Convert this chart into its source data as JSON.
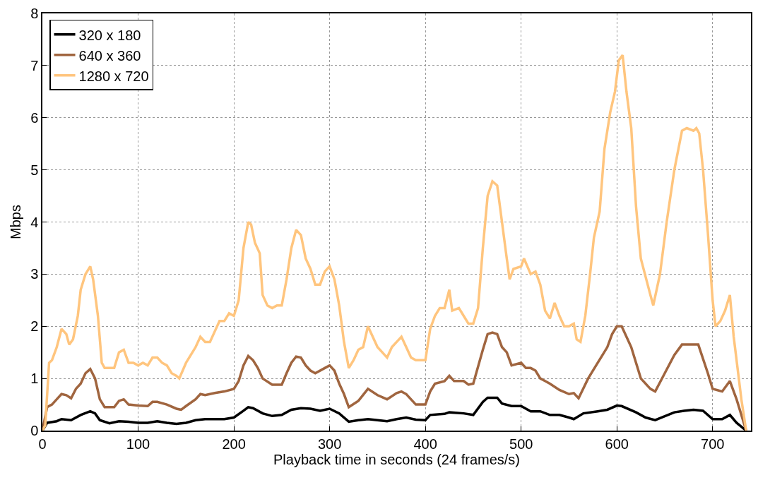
{
  "chart_data": {
    "type": "line",
    "xlabel": "Playback time in seconds (24 frames/s)",
    "ylabel": "Mbps",
    "xlim": [
      0,
      740
    ],
    "xticks": [
      0,
      100,
      200,
      300,
      400,
      500,
      600,
      700
    ],
    "ylim": [
      0,
      8
    ],
    "yticks": [
      0,
      1,
      2,
      3,
      4,
      5,
      6,
      7,
      8
    ],
    "grid": true,
    "legend": "top left",
    "marker": "none",
    "line_style": "solid",
    "series": [
      {
        "name": "320 x 180",
        "color": "#000000",
        "x": [
          0,
          5,
          15,
          20,
          30,
          40,
          50,
          55,
          60,
          70,
          80,
          90,
          100,
          110,
          120,
          130,
          140,
          150,
          160,
          170,
          180,
          190,
          200,
          210,
          215,
          220,
          230,
          240,
          250,
          260,
          270,
          280,
          290,
          300,
          310,
          320,
          330,
          340,
          350,
          360,
          370,
          380,
          390,
          400,
          405,
          420,
          425,
          440,
          450,
          460,
          465,
          475,
          480,
          490,
          500,
          510,
          520,
          530,
          540,
          550,
          555,
          565,
          580,
          590,
          600,
          605,
          620,
          630,
          640,
          660,
          670,
          680,
          690,
          700,
          710,
          718,
          725,
          735
        ],
        "values": [
          0,
          0.15,
          0.18,
          0.22,
          0.2,
          0.3,
          0.37,
          0.33,
          0.2,
          0.14,
          0.18,
          0.17,
          0.15,
          0.15,
          0.18,
          0.15,
          0.13,
          0.15,
          0.2,
          0.22,
          0.22,
          0.22,
          0.25,
          0.38,
          0.45,
          0.43,
          0.33,
          0.28,
          0.3,
          0.4,
          0.43,
          0.42,
          0.38,
          0.42,
          0.33,
          0.17,
          0.2,
          0.22,
          0.2,
          0.18,
          0.22,
          0.25,
          0.21,
          0.2,
          0.3,
          0.32,
          0.35,
          0.33,
          0.3,
          0.55,
          0.63,
          0.63,
          0.52,
          0.47,
          0.47,
          0.37,
          0.37,
          0.3,
          0.3,
          0.25,
          0.22,
          0.33,
          0.37,
          0.4,
          0.48,
          0.47,
          0.35,
          0.25,
          0.2,
          0.35,
          0.38,
          0.4,
          0.38,
          0.22,
          0.22,
          0.3,
          0.15,
          0
        ]
      },
      {
        "name": "640 x 360",
        "color": "#a0653f",
        "x": [
          0,
          5,
          10,
          15,
          20,
          25,
          30,
          35,
          40,
          45,
          50,
          55,
          60,
          65,
          70,
          75,
          80,
          85,
          90,
          100,
          110,
          115,
          120,
          130,
          140,
          145,
          150,
          160,
          165,
          170,
          180,
          190,
          200,
          205,
          210,
          215,
          220,
          225,
          230,
          240,
          250,
          255,
          260,
          265,
          270,
          275,
          280,
          285,
          295,
          300,
          305,
          310,
          315,
          320,
          330,
          340,
          350,
          360,
          370,
          375,
          380,
          390,
          400,
          405,
          410,
          420,
          425,
          430,
          440,
          445,
          450,
          460,
          465,
          470,
          475,
          480,
          485,
          490,
          500,
          505,
          510,
          515,
          520,
          525,
          530,
          540,
          550,
          555,
          560,
          570,
          580,
          590,
          595,
          600,
          605,
          615,
          625,
          635,
          640,
          650,
          660,
          668,
          680,
          685,
          695,
          700,
          710,
          718,
          725,
          735
        ],
        "values": [
          0,
          0.45,
          0.5,
          0.6,
          0.7,
          0.68,
          0.62,
          0.8,
          0.9,
          1.1,
          1.18,
          1.0,
          0.6,
          0.45,
          0.45,
          0.45,
          0.57,
          0.6,
          0.5,
          0.48,
          0.47,
          0.55,
          0.55,
          0.5,
          0.42,
          0.4,
          0.47,
          0.6,
          0.7,
          0.68,
          0.72,
          0.75,
          0.8,
          0.95,
          1.25,
          1.43,
          1.35,
          1.2,
          1.0,
          0.88,
          0.88,
          1.1,
          1.3,
          1.42,
          1.4,
          1.25,
          1.15,
          1.1,
          1.2,
          1.25,
          1.15,
          0.9,
          0.7,
          0.45,
          0.57,
          0.8,
          0.68,
          0.6,
          0.72,
          0.75,
          0.7,
          0.5,
          0.5,
          0.75,
          0.9,
          0.95,
          1.05,
          0.95,
          0.95,
          0.88,
          0.9,
          1.55,
          1.85,
          1.88,
          1.85,
          1.6,
          1.5,
          1.25,
          1.3,
          1.2,
          1.2,
          1.15,
          1.0,
          0.95,
          0.9,
          0.78,
          0.7,
          0.72,
          0.62,
          1.0,
          1.3,
          1.6,
          1.85,
          2.0,
          2.0,
          1.6,
          1.0,
          0.8,
          0.75,
          1.1,
          1.45,
          1.65,
          1.65,
          1.65,
          1.1,
          0.8,
          0.75,
          0.95,
          0.6,
          0
        ]
      },
      {
        "name": "1280 x 720",
        "color": "#ffc57e",
        "x": [
          0,
          3,
          7,
          10,
          15,
          20,
          25,
          28,
          32,
          37,
          40,
          45,
          50,
          53,
          58,
          62,
          65,
          70,
          75,
          80,
          85,
          90,
          95,
          100,
          105,
          110,
          115,
          120,
          125,
          130,
          135,
          140,
          143,
          150,
          155,
          160,
          165,
          170,
          175,
          180,
          185,
          190,
          195,
          200,
          205,
          210,
          215,
          218,
          222,
          227,
          230,
          235,
          240,
          245,
          250,
          255,
          260,
          265,
          270,
          275,
          280,
          285,
          290,
          295,
          300,
          305,
          310,
          315,
          320,
          325,
          330,
          335,
          340,
          345,
          350,
          355,
          360,
          365,
          370,
          375,
          380,
          385,
          390,
          395,
          400,
          405,
          410,
          415,
          420,
          425,
          428,
          435,
          440,
          445,
          450,
          455,
          460,
          465,
          470,
          475,
          480,
          485,
          488,
          492,
          500,
          503,
          510,
          515,
          520,
          525,
          530,
          535,
          540,
          545,
          550,
          555,
          558,
          562,
          567,
          572,
          576,
          582,
          587,
          593,
          598,
          602,
          606,
          610,
          615,
          620,
          625,
          630,
          635,
          638,
          645,
          652,
          660,
          668,
          673,
          680,
          683,
          686,
          690,
          695,
          700,
          703,
          708,
          713,
          718,
          722,
          730,
          735
        ],
        "values": [
          0,
          0.1,
          1.3,
          1.35,
          1.6,
          1.95,
          1.85,
          1.65,
          1.75,
          2.2,
          2.7,
          3.0,
          3.15,
          2.9,
          2.2,
          1.3,
          1.2,
          1.2,
          1.2,
          1.5,
          1.55,
          1.3,
          1.3,
          1.25,
          1.3,
          1.25,
          1.4,
          1.4,
          1.3,
          1.25,
          1.1,
          1.05,
          1.0,
          1.3,
          1.45,
          1.6,
          1.8,
          1.7,
          1.7,
          1.9,
          2.1,
          2.1,
          2.25,
          2.2,
          2.5,
          3.5,
          4.0,
          3.95,
          3.6,
          3.4,
          2.6,
          2.4,
          2.35,
          2.4,
          2.4,
          2.9,
          3.5,
          3.85,
          3.75,
          3.3,
          3.1,
          2.8,
          2.8,
          3.05,
          3.15,
          2.9,
          2.4,
          1.7,
          1.2,
          1.35,
          1.55,
          1.6,
          2.0,
          1.8,
          1.6,
          1.5,
          1.4,
          1.6,
          1.7,
          1.8,
          1.6,
          1.4,
          1.35,
          1.35,
          1.35,
          1.95,
          2.2,
          2.35,
          2.35,
          2.7,
          2.3,
          2.35,
          2.2,
          2.05,
          2.05,
          2.35,
          3.5,
          4.5,
          4.78,
          4.7,
          4.0,
          3.3,
          2.9,
          3.1,
          3.15,
          3.3,
          3.0,
          3.05,
          2.8,
          2.3,
          2.15,
          2.45,
          2.2,
          2.0,
          2.0,
          2.05,
          1.75,
          1.7,
          2.2,
          3.0,
          3.7,
          4.2,
          5.4,
          6.1,
          6.5,
          7.1,
          7.2,
          6.5,
          5.8,
          4.3,
          3.3,
          2.95,
          2.6,
          2.4,
          3.0,
          4.0,
          5.0,
          5.75,
          5.8,
          5.75,
          5.8,
          5.7,
          5.0,
          3.8,
          2.5,
          2.0,
          2.1,
          2.3,
          2.6,
          1.8,
          0.6,
          0
        ]
      }
    ]
  }
}
